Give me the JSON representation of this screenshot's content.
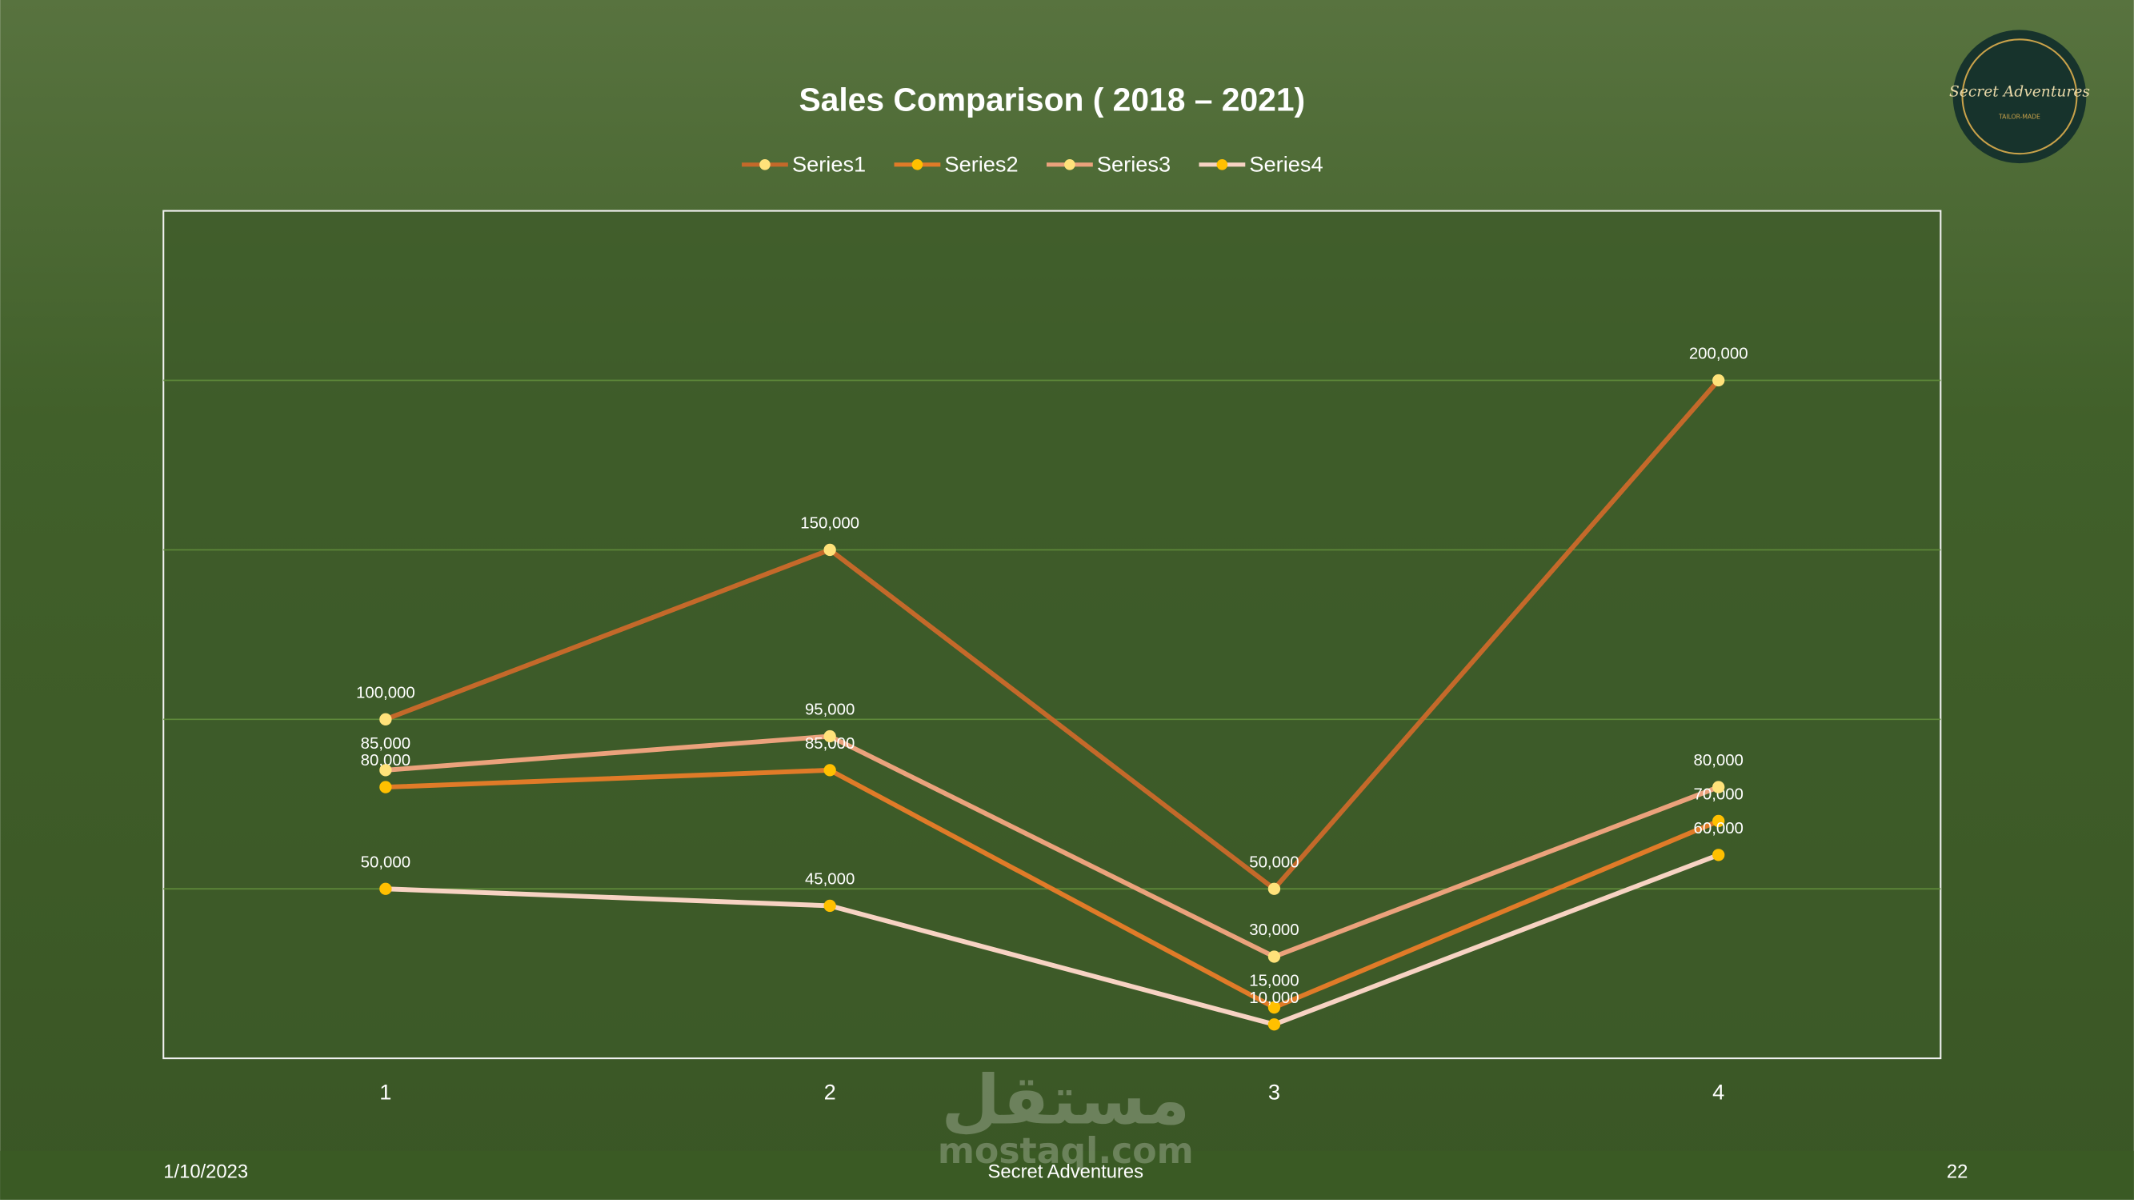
{
  "chart_data": {
    "type": "line",
    "title": "Sales Comparison ( 2018 – 2021)",
    "categories": [
      "1",
      "2",
      "3",
      "4"
    ],
    "series": [
      {
        "name": "Series1",
        "color": "#c4692a",
        "marker_color": "#ffe27a",
        "values": [
          100000,
          150000,
          50000,
          200000
        ],
        "value_labels": [
          "100,000",
          "150,000",
          "50,000",
          "200,000"
        ]
      },
      {
        "name": "Series2",
        "color": "#e07b28",
        "marker_color": "#ffc000",
        "values": [
          80000,
          85000,
          15000,
          70000
        ],
        "value_labels": [
          "80,000",
          "85,000",
          "15,000",
          "70,000"
        ]
      },
      {
        "name": "Series3",
        "color": "#eba27c",
        "marker_color": "#ffe27a",
        "values": [
          85000,
          95000,
          30000,
          80000
        ],
        "value_labels": [
          "85,000",
          "95,000",
          "30,000",
          "80,000"
        ]
      },
      {
        "name": "Series4",
        "color": "#f7d3c3",
        "marker_color": "#ffc000",
        "values": [
          50000,
          45000,
          10000,
          60000
        ],
        "value_labels": [
          "50,000",
          "45,000",
          "10,000",
          "60,000"
        ]
      }
    ],
    "ylim": [
      0,
      250000
    ],
    "yticks": [
      0,
      50000,
      100000,
      150000,
      200000,
      250000
    ],
    "grid": true,
    "legend": "top"
  },
  "logo": {
    "title": "Secret Adventures",
    "subtitle": "TAILOR-MADE"
  },
  "watermark": {
    "arabic": "مستقل",
    "latin": "mostaql.com"
  },
  "footer": {
    "date": "1/10/2023",
    "center": "Secret Adventures",
    "page": "22"
  }
}
